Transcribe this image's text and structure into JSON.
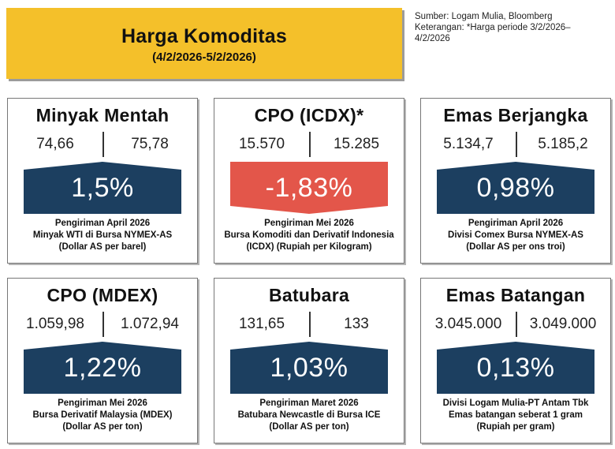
{
  "header": {
    "title": "Harga Komoditas",
    "period": "(4/2/2026-5/2/2026)"
  },
  "source": {
    "line1": "Sumber: Logam Mulia, Bloomberg",
    "line2": "Keterangan: *Harga periode 3/2/2026–",
    "line3": "4/2/2026"
  },
  "colors": {
    "up": "#1c3f60",
    "down": "#e3564a",
    "title_bg": "#f4c02a"
  },
  "cards": [
    {
      "title": "Minyak Mentah",
      "price_start": "74,66",
      "price_end": "75,78",
      "change": "1,5%",
      "direction": "up",
      "note1": "Pengiriman April 2026",
      "note2": "Minyak WTI di Bursa NYMEX-AS",
      "note3": "(Dollar AS per barel)"
    },
    {
      "title": "CPO (ICDX)*",
      "price_start": "15.570",
      "price_end": "15.285",
      "change": "-1,83%",
      "direction": "down",
      "note1": "Pengiriman Mei 2026",
      "note2": "Bursa Komoditi dan Derivatif Indonesia",
      "note3": "(ICDX) (Rupiah per Kilogram)"
    },
    {
      "title": "Emas Berjangka",
      "price_start": "5.134,7",
      "price_end": "5.185,2",
      "change": "0,98%",
      "direction": "up",
      "note1": "Pengiriman April 2026",
      "note2": "Divisi Comex Bursa NYMEX-AS",
      "note3": "(Dollar AS per ons troi)"
    },
    {
      "title": "CPO (MDEX)",
      "price_start": "1.059,98",
      "price_end": "1.072,94",
      "change": "1,22%",
      "direction": "up",
      "note1": "Pengiriman Mei 2026",
      "note2": "Bursa Derivatif Malaysia (MDEX)",
      "note3": "(Dollar AS per ton)"
    },
    {
      "title": "Batubara",
      "price_start": "131,65",
      "price_end": "133",
      "change": "1,03%",
      "direction": "up",
      "note1": "Pengiriman Maret 2026",
      "note2": "Batubara Newcastle di Bursa ICE",
      "note3": "(Dollar AS per ton)"
    },
    {
      "title": "Emas Batangan",
      "price_start": "3.045.000",
      "price_end": "3.049.000",
      "change": "0,13%",
      "direction": "up",
      "note1": "Divisi Logam Mulia-PT Antam Tbk",
      "note2": "Emas batangan seberat 1 gram",
      "note3": "(Rupiah per gram)"
    }
  ]
}
